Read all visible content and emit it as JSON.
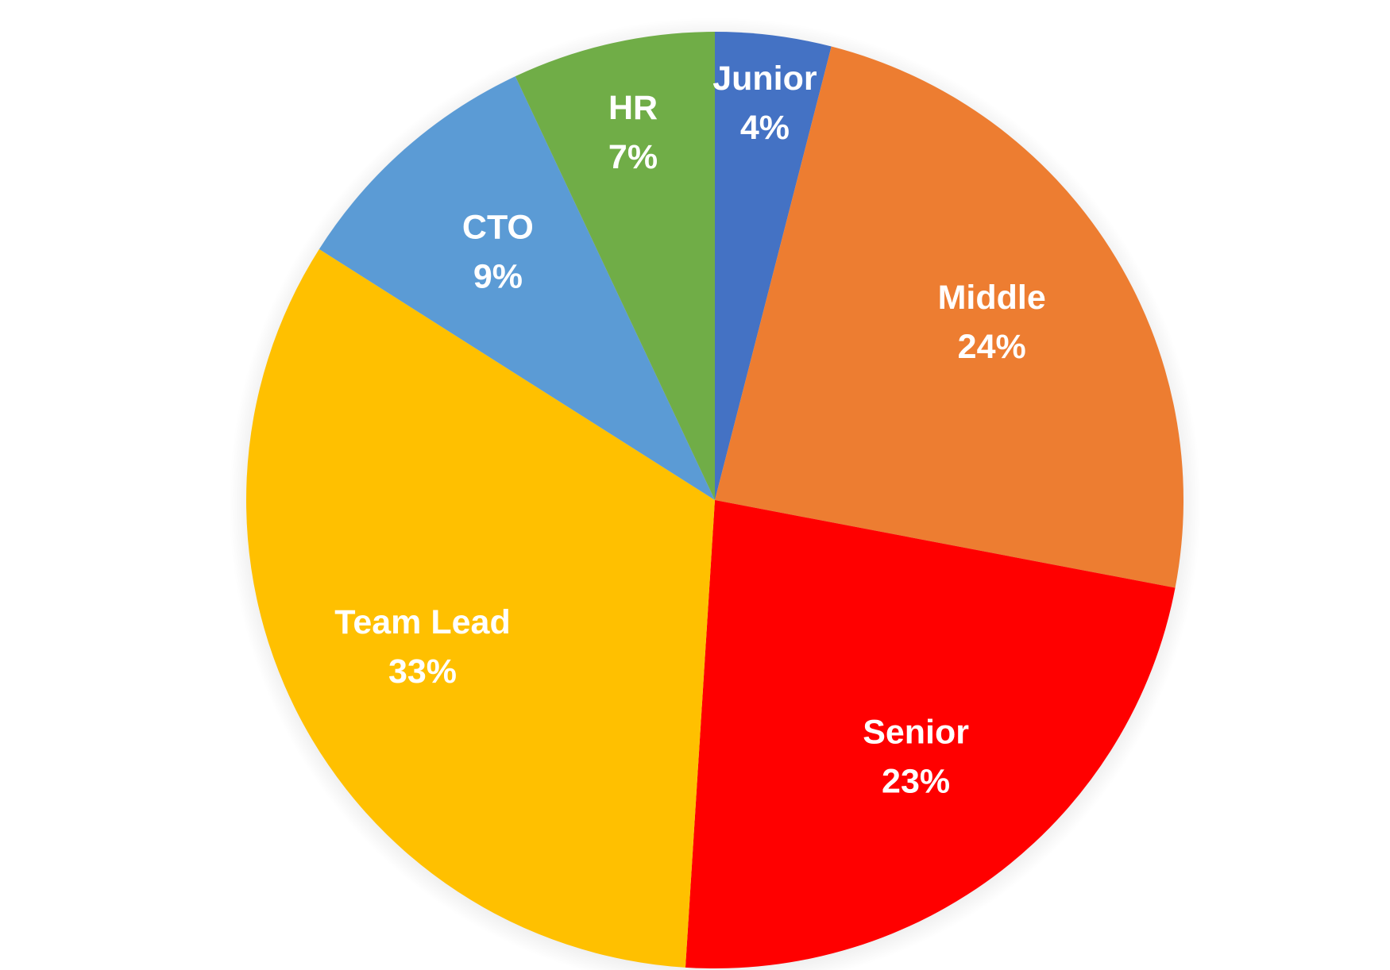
{
  "chart_data": {
    "type": "pie",
    "title": "",
    "slices": [
      {
        "label": "Junior",
        "value": 4,
        "display": "4%",
        "color": "#4472C4"
      },
      {
        "label": "Middle",
        "value": 24,
        "display": "24%",
        "color": "#ED7D31"
      },
      {
        "label": "Senior",
        "value": 23,
        "display": "23%",
        "color": "#FF0000"
      },
      {
        "label": "Team Lead",
        "value": 33,
        "display": "33%",
        "color": "#FFC000"
      },
      {
        "label": "CTO",
        "value": 9,
        "display": "9%",
        "color": "#5B9BD5"
      },
      {
        "label": "HR",
        "value": 7,
        "display": "7%",
        "color": "#70AD47"
      }
    ],
    "start": "12 o'clock",
    "direction": "clockwise",
    "legend": "none",
    "data_labels": "category name and percentage, inside slices"
  }
}
